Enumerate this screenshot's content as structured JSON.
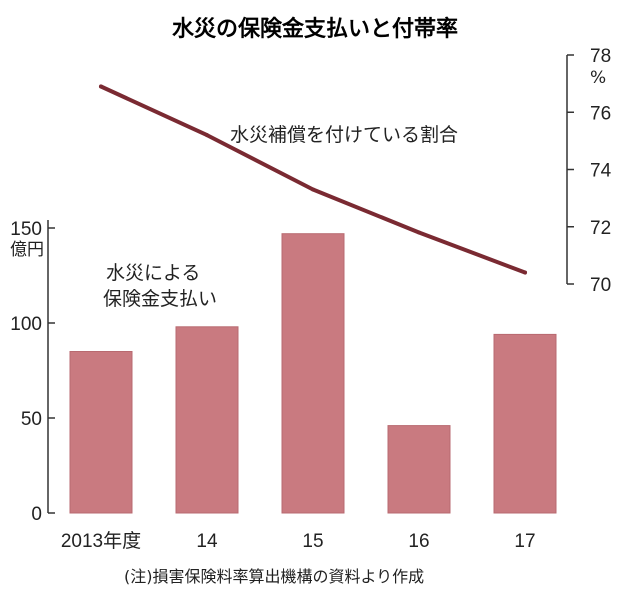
{
  "title": "水災の保険金支払いと付帯率",
  "note": "(注)損害保険料率算出機構の資料より作成",
  "colors": {
    "bar": "#c97a80",
    "bar_stroke": "#b86a70",
    "line": "#7a2a32",
    "axis": "#333333"
  },
  "chart_data": {
    "type": "bar",
    "categories": [
      "2013年度",
      "14",
      "15",
      "16",
      "17"
    ],
    "series": [
      {
        "name": "水災による保険金支払い",
        "type": "bar",
        "axis": "left",
        "values": [
          85,
          98,
          147,
          46,
          94
        ]
      },
      {
        "name": "水災補償を付けている割合",
        "type": "line",
        "axis": "right",
        "values": [
          76.9,
          75.2,
          73.3,
          71.8,
          70.4
        ]
      }
    ],
    "y_left": {
      "label": "億円",
      "ylim": [
        0,
        150
      ],
      "ticks": [
        0,
        50,
        100,
        150
      ]
    },
    "y_right": {
      "label": "%",
      "ylim": [
        70,
        78
      ],
      "ticks": [
        70,
        72,
        74,
        76,
        78
      ]
    },
    "annotations": {
      "bar_label_line1": "水災による",
      "bar_label_line2": "保険金支払い",
      "line_label": "水災補償を付けている割合"
    },
    "grid": false
  }
}
